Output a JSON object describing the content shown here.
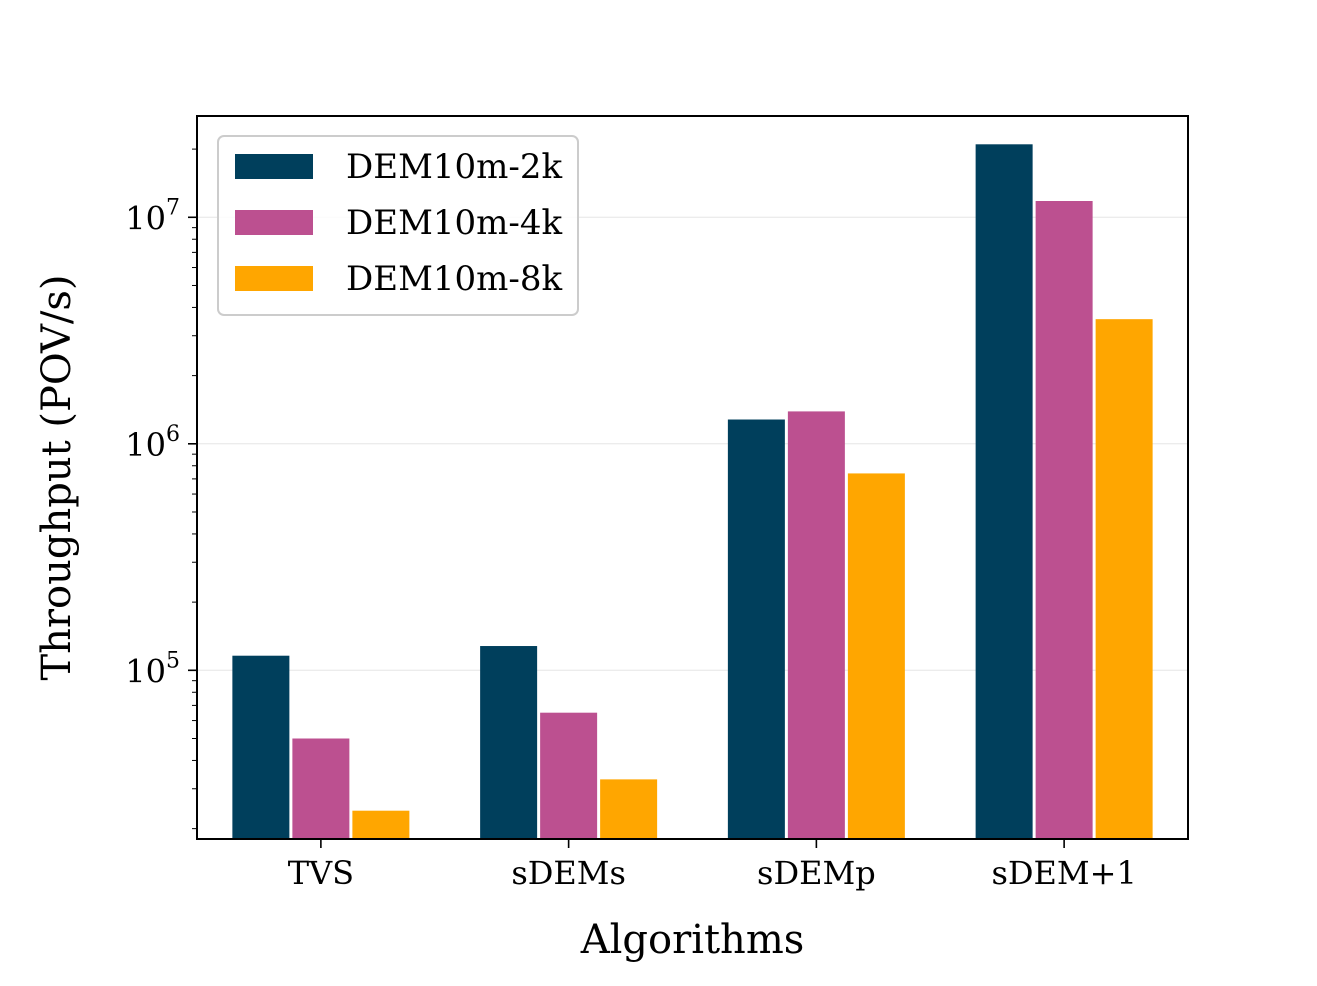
{
  "chart_data": {
    "type": "bar",
    "title": "",
    "xlabel": "Algorithms",
    "ylabel": "Throughput (POV/s)",
    "yscale": "log",
    "ylim": [
      18000,
      28000000
    ],
    "yticks": [
      {
        "value": 100000,
        "base": "10",
        "exp": "5"
      },
      {
        "value": 1000000,
        "base": "10",
        "exp": "6"
      },
      {
        "value": 10000000,
        "base": "10",
        "exp": "7"
      }
    ],
    "categories": [
      "TVS",
      "sDEMs",
      "sDEMp",
      "sDEM+1"
    ],
    "series": [
      {
        "name": "DEM10m-2k",
        "color": "#003f5c",
        "values": [
          116000,
          128000,
          1280000,
          21000000
        ]
      },
      {
        "name": "DEM10m-4k",
        "color": "#bc5090",
        "values": [
          50000,
          65000,
          1390000,
          11800000
        ]
      },
      {
        "name": "DEM10m-8k",
        "color": "#ffa600",
        "values": [
          24000,
          33000,
          740000,
          3550000
        ]
      }
    ],
    "grid": true,
    "legend_position": "top-left"
  }
}
